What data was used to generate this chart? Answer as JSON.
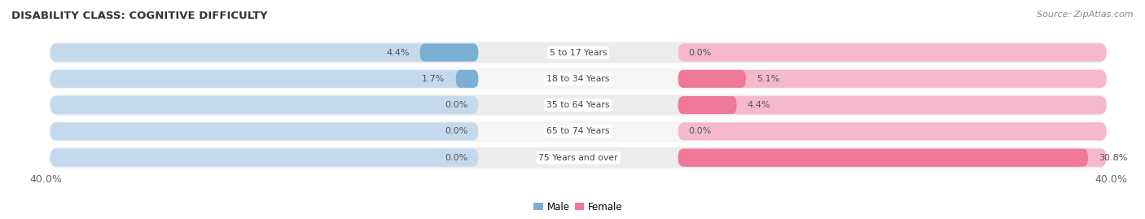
{
  "title": "DISABILITY CLASS: COGNITIVE DIFFICULTY",
  "source": "Source: ZipAtlas.com",
  "categories": [
    "5 to 17 Years",
    "18 to 34 Years",
    "35 to 64 Years",
    "65 to 74 Years",
    "75 Years and over"
  ],
  "male_values": [
    4.4,
    1.7,
    0.0,
    0.0,
    0.0
  ],
  "female_values": [
    0.0,
    5.1,
    4.4,
    0.0,
    30.8
  ],
  "x_max": 40.0,
  "male_color": "#7bafd4",
  "female_color": "#f07898",
  "male_bg_color": "#c5d9ed",
  "female_bg_color": "#f5b8cc",
  "male_label": "Male",
  "female_label": "Female",
  "row_bg_color": "#ececec",
  "row_bg_alt": "#f5f5f5",
  "label_color": "#444444",
  "title_color": "#333333",
  "source_color": "#888888",
  "axis_label_color": "#666666",
  "value_label_color": "#555555"
}
